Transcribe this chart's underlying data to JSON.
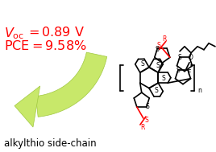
{
  "bg_color": "#ffffff",
  "text_color_red": "#ff0000",
  "text_color_black": "#000000",
  "arrow_fill_color": "#c8e86a",
  "arrow_edge_color": "#a0c840",
  "figsize": [
    2.68,
    1.89
  ],
  "dpi": 100,
  "voc_line": "$V_{\\mathrm{oc}}$ = 0.89 V",
  "pce_line": "PCE = 9.58%",
  "label_line": "alkylthio side-chain"
}
